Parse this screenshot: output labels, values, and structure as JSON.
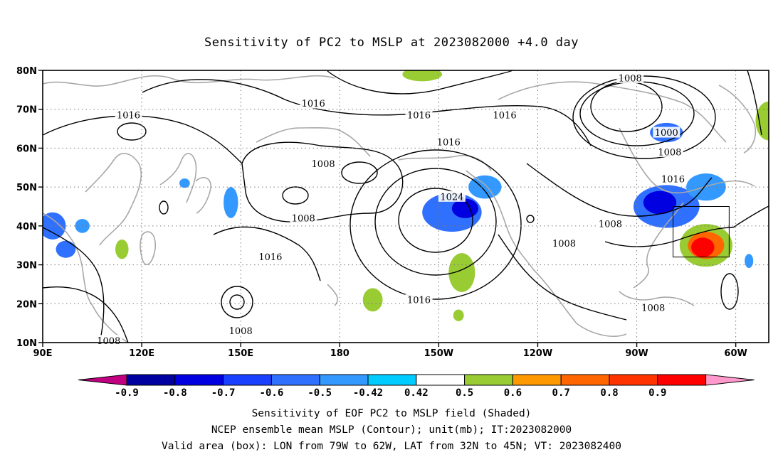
{
  "title": "Sensitivity of PC2 to MSLP at 2023082000 +4.0 day",
  "map": {
    "lat_ticks": [
      {
        "v": 80,
        "label": "80N"
      },
      {
        "v": 70,
        "label": "70N"
      },
      {
        "v": 60,
        "label": "60N"
      },
      {
        "v": 50,
        "label": "50N"
      },
      {
        "v": 40,
        "label": "40N"
      },
      {
        "v": 30,
        "label": "30N"
      },
      {
        "v": 20,
        "label": "20N"
      },
      {
        "v": 10,
        "label": "10N"
      }
    ],
    "lon_ticks": [
      {
        "v": 90,
        "label": "90E"
      },
      {
        "v": 120,
        "label": "120E"
      },
      {
        "v": 150,
        "label": "150E"
      },
      {
        "v": 180,
        "label": "180"
      },
      {
        "v": 210,
        "label": "150W"
      },
      {
        "v": 240,
        "label": "120W"
      },
      {
        "v": 270,
        "label": "90W"
      },
      {
        "v": 300,
        "label": "60W"
      }
    ],
    "lon_range": [
      90,
      310
    ],
    "lat_range": [
      10,
      80
    ],
    "grid": "dotted",
    "valid_box": {
      "lon": [
        281,
        298
      ],
      "lat": [
        32,
        45
      ]
    },
    "contour_labels": [
      {
        "text": "1016",
        "lon": 172,
        "lat": 71.5
      },
      {
        "text": "1016",
        "lon": 116,
        "lat": 68.5
      },
      {
        "text": "1016",
        "lon": 204,
        "lat": 68.5
      },
      {
        "text": "1016",
        "lon": 230,
        "lat": 68.5
      },
      {
        "text": "1008",
        "lon": 268,
        "lat": 78
      },
      {
        "text": "1000",
        "lon": 279,
        "lat": 64
      },
      {
        "text": "1008",
        "lon": 280,
        "lat": 59
      },
      {
        "text": "1016",
        "lon": 281,
        "lat": 52
      },
      {
        "text": "1016",
        "lon": 213,
        "lat": 61.5
      },
      {
        "text": "1008",
        "lon": 175,
        "lat": 56
      },
      {
        "text": "1008",
        "lon": 169,
        "lat": 42
      },
      {
        "text": "1024",
        "lon": 214,
        "lat": 47.5
      },
      {
        "text": "1008",
        "lon": 262,
        "lat": 40.5
      },
      {
        "text": "1008",
        "lon": 248,
        "lat": 35.5
      },
      {
        "text": "1016",
        "lon": 159,
        "lat": 32
      },
      {
        "text": "1016",
        "lon": 204,
        "lat": 21
      },
      {
        "text": "1008",
        "lon": 275,
        "lat": 19
      },
      {
        "text": "1008",
        "lon": 150,
        "lat": 13
      },
      {
        "text": "1008",
        "lon": 110,
        "lat": 10.5
      }
    ],
    "shaded_areas": [
      {
        "lon": 214,
        "lat": 43.5,
        "rx": 9,
        "ry": 5,
        "value": -0.6
      },
      {
        "lon": 218,
        "lat": 44.5,
        "rx": 4,
        "ry": 2.5,
        "value": -0.8
      },
      {
        "lon": 224,
        "lat": 50,
        "rx": 5,
        "ry": 3,
        "value": -0.5
      },
      {
        "lon": 279,
        "lat": 45,
        "rx": 10,
        "ry": 5.5,
        "value": -0.6
      },
      {
        "lon": 277,
        "lat": 46,
        "rx": 5,
        "ry": 3,
        "value": -0.8
      },
      {
        "lon": 291,
        "lat": 50,
        "rx": 6,
        "ry": 3.5,
        "value": -0.5
      },
      {
        "lon": 279,
        "lat": 64,
        "rx": 5,
        "ry": 2.5,
        "value": -0.6
      },
      {
        "lon": 93,
        "lat": 40,
        "rx": 4,
        "ry": 3.5,
        "value": -0.6
      },
      {
        "lon": 97,
        "lat": 34,
        "rx": 3,
        "ry": 2.2,
        "value": -0.6
      },
      {
        "lon": 102,
        "lat": 40,
        "rx": 2.2,
        "ry": 1.8,
        "value": -0.5
      },
      {
        "lon": 133,
        "lat": 51,
        "rx": 1.6,
        "ry": 1.2,
        "value": -0.5
      },
      {
        "lon": 147,
        "lat": 46,
        "rx": 2.2,
        "ry": 4,
        "value": -0.5
      },
      {
        "lon": 304,
        "lat": 31,
        "rx": 1.3,
        "ry": 1.8,
        "value": -0.5
      },
      {
        "lon": 291,
        "lat": 35,
        "rx": 8,
        "ry": 5.5,
        "value": 0.5
      },
      {
        "lon": 291,
        "lat": 35,
        "rx": 5.5,
        "ry": 3.5,
        "value": 0.6
      },
      {
        "lon": 290,
        "lat": 34.5,
        "rx": 3.5,
        "ry": 2.5,
        "value": 0.8
      },
      {
        "lon": 217,
        "lat": 28,
        "rx": 4,
        "ry": 5,
        "value": 0.5
      },
      {
        "lon": 190,
        "lat": 21,
        "rx": 3,
        "ry": 3,
        "value": 0.5
      },
      {
        "lon": 114,
        "lat": 34,
        "rx": 2,
        "ry": 2.5,
        "value": 0.5
      },
      {
        "lon": 310,
        "lat": 67,
        "rx": 4,
        "ry": 5,
        "value": 0.5
      },
      {
        "lon": 205,
        "lat": 79,
        "rx": 6,
        "ry": 1.8,
        "value": 0.5
      },
      {
        "lon": 216,
        "lat": 17,
        "rx": 1.6,
        "ry": 1.5,
        "value": 0.5
      }
    ]
  },
  "colorbar": {
    "labels": [
      "-0.9",
      "-0.8",
      "-0.7",
      "-0.6",
      "-0.5",
      "-0.42",
      "0.42",
      "0.5",
      "0.6",
      "0.7",
      "0.8",
      "0.9"
    ],
    "colors": [
      "#0000a0",
      "#0000e0",
      "#1a40ff",
      "#3070ff",
      "#3399ff",
      "#00ccff",
      "#ffffff",
      "#99cc33",
      "#ff9900",
      "#ff6600",
      "#ff3300",
      "#ff0000"
    ],
    "low_end_color": "#c00080",
    "high_end_color": "#ff99cc"
  },
  "captions": [
    "Sensitivity of EOF PC2 to MSLP field (Shaded)",
    "NCEP ensemble mean MSLP (Contour); unit(mb); IT:2023082000",
    "Valid area (box): LON from 79W to 62W, LAT from 32N to 45N; VT: 2023082400"
  ]
}
